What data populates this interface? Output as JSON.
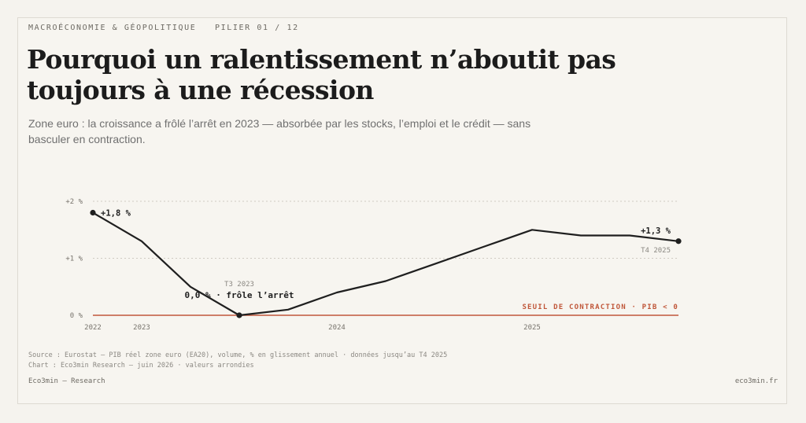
{
  "header": {
    "category": "MACROÉCONOMIE & GÉOPOLITIQUE",
    "pillar": "PILIER 01 / 12"
  },
  "title": "Pourquoi un ralentissement n’aboutit pas toujours à une récession",
  "subtitle": "Zone euro : la croissance a frôlé l’arrêt en 2023 — absorbée par les stocks, l’emploi et le crédit — sans basculer en contraction.",
  "chart_data": {
    "type": "line",
    "title": "",
    "xlabel": "",
    "ylabel": "",
    "ylim": [
      0,
      2
    ],
    "y_ticks": [
      {
        "value": 0,
        "label": "0 %"
      },
      {
        "value": 1,
        "label": "+1 %"
      },
      {
        "value": 2,
        "label": "+2 %"
      }
    ],
    "x_ticks": [
      {
        "x": 0,
        "label": "2022"
      },
      {
        "x": 1,
        "label": "2023"
      },
      {
        "x": 5,
        "label": "2024"
      },
      {
        "x": 9,
        "label": "2025"
      }
    ],
    "x_range": [
      0,
      12
    ],
    "series": [
      {
        "x": [
          0,
          1,
          2,
          3,
          4,
          5,
          6,
          7,
          8,
          9,
          10,
          11,
          12
        ],
        "values": [
          1.8,
          1.3,
          0.5,
          0.0,
          0.1,
          0.4,
          0.6,
          0.9,
          1.2,
          1.5,
          1.4,
          1.4,
          1.3
        ]
      }
    ],
    "grid": "horizontal dotted",
    "threshold": {
      "value": 0,
      "label": "SEUIL DE CONTRACTION · PIB < 0",
      "color": "#c0573a"
    },
    "annotations": [
      {
        "id": "start",
        "x": 0,
        "y": 1.8,
        "label": "+1,8 %"
      },
      {
        "id": "trough",
        "x": 3,
        "y": 0.0,
        "label": "0,0 % · frôle l’arrêt",
        "sublabel": "T3 2023"
      },
      {
        "id": "end",
        "x": 12,
        "y": 1.3,
        "label": "+1,3 %",
        "sublabel": "T4 2025"
      }
    ],
    "line_color": "#1f1f1f"
  },
  "source_lines": [
    "Source : Eurostat — PIB réel zone euro (EA20), volume, % en glissement annuel · données jusqu’au T4 2025",
    "Chart : Eco3min Research — juin 2026 · valeurs arrondies"
  ],
  "footer": {
    "left": "Eco3min — Research",
    "right": "eco3min.fr"
  }
}
